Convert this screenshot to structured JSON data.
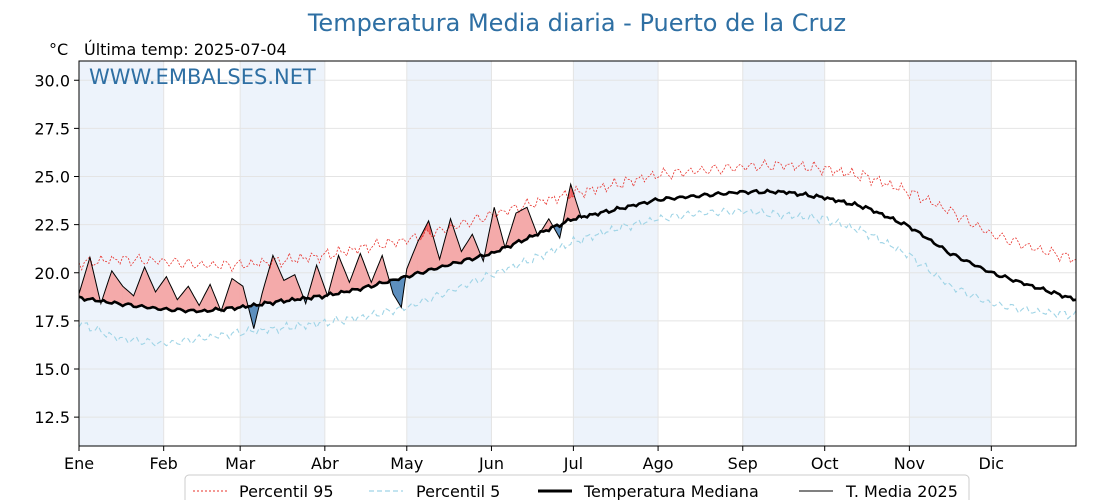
{
  "chart_data": {
    "type": "line",
    "title": "Temperatura Media diaria - Puerto de la Cruz",
    "unit_label": "°C",
    "subtitle": "Última temp: 2025-07-04",
    "watermark": "WWW.EMBALSES.NET",
    "ylim": [
      11.0,
      31.0
    ],
    "yticks": [
      "12.5",
      "15.0",
      "17.5",
      "20.0",
      "22.5",
      "25.0",
      "27.5",
      "30.0"
    ],
    "ytick_values": [
      12.5,
      15.0,
      17.5,
      20.0,
      22.5,
      25.0,
      27.5,
      30.0
    ],
    "xlim": [
      1,
      366
    ],
    "month_labels": [
      "Ene",
      "Feb",
      "Mar",
      "Abr",
      "May",
      "Jun",
      "Jul",
      "Ago",
      "Sep",
      "Oct",
      "Nov",
      "Dic"
    ],
    "month_start_days": [
      1,
      32,
      60,
      91,
      121,
      152,
      182,
      213,
      244,
      274,
      305,
      335
    ],
    "grid": true,
    "legend_position": "bottom",
    "anchors": {
      "days": [
        1,
        15,
        32,
        46,
        60,
        74,
        91,
        105,
        121,
        136,
        152,
        167,
        182,
        198,
        213,
        228,
        244,
        259,
        274,
        289,
        305,
        320,
        335,
        350,
        366
      ],
      "median": [
        18.7,
        18.4,
        18.1,
        18.0,
        18.2,
        18.5,
        18.8,
        19.2,
        19.8,
        20.4,
        21.0,
        21.9,
        22.8,
        23.3,
        23.8,
        24.0,
        24.2,
        24.2,
        23.9,
        23.4,
        22.4,
        21.0,
        20.0,
        19.3,
        18.6
      ],
      "p95": [
        20.5,
        20.7,
        20.6,
        20.4,
        20.4,
        20.6,
        20.9,
        21.3,
        21.7,
        22.3,
        23.0,
        23.6,
        24.1,
        24.6,
        25.1,
        25.3,
        25.5,
        25.6,
        25.4,
        25.0,
        24.2,
        23.2,
        22.0,
        21.3,
        20.7
      ],
      "p5": [
        17.4,
        16.6,
        16.3,
        16.6,
        16.9,
        17.1,
        17.4,
        17.7,
        18.2,
        19.0,
        19.9,
        20.7,
        21.6,
        22.3,
        22.8,
        23.1,
        23.2,
        23.0,
        22.8,
        22.1,
        20.9,
        19.3,
        18.4,
        18.0,
        17.8
      ]
    },
    "series": [
      {
        "name": "T. Media 2025",
        "color": "#000000",
        "days": [
          1,
          5,
          9,
          13,
          17,
          21,
          25,
          29,
          33,
          37,
          41,
          45,
          49,
          53,
          57,
          61,
          65,
          68,
          72,
          76,
          80,
          84,
          88,
          92,
          96,
          100,
          104,
          108,
          112,
          116,
          119,
          121,
          125,
          129,
          133,
          137,
          141,
          145,
          149,
          153,
          157,
          161,
          165,
          169,
          173,
          177,
          181,
          185
        ],
        "values": [
          18.9,
          20.8,
          18.4,
          20.1,
          19.3,
          18.8,
          20.3,
          19.0,
          19.8,
          18.6,
          19.3,
          18.3,
          19.4,
          18.0,
          19.7,
          19.3,
          17.1,
          18.9,
          20.9,
          19.6,
          19.9,
          18.4,
          20.4,
          18.8,
          20.9,
          19.5,
          21.0,
          19.5,
          20.9,
          18.9,
          18.2,
          20.2,
          21.6,
          22.7,
          20.7,
          22.8,
          21.1,
          22.0,
          20.6,
          23.4,
          21.3,
          23.1,
          23.4,
          21.9,
          22.8,
          21.8,
          24.6,
          22.8
        ]
      }
    ],
    "legend": [
      {
        "label": "Percentil 95",
        "color": "#e8302a",
        "style": "dotted"
      },
      {
        "label": "Percentil 5",
        "color": "#9fd4e6",
        "style": "dashed"
      },
      {
        "label": "Temperatura Mediana",
        "color": "#000000",
        "style": "thick"
      },
      {
        "label": "T. Media 2025",
        "color": "#000000",
        "style": "thin"
      }
    ],
    "colors": {
      "title": "#2e6fa3",
      "above_median_fill": "#f4aaaa",
      "above_p95_fill": "#ee5f5f",
      "below_median_fill": "#5d8fbe",
      "month_band": "#edf3fb",
      "grid": "#e4e4e4"
    }
  }
}
